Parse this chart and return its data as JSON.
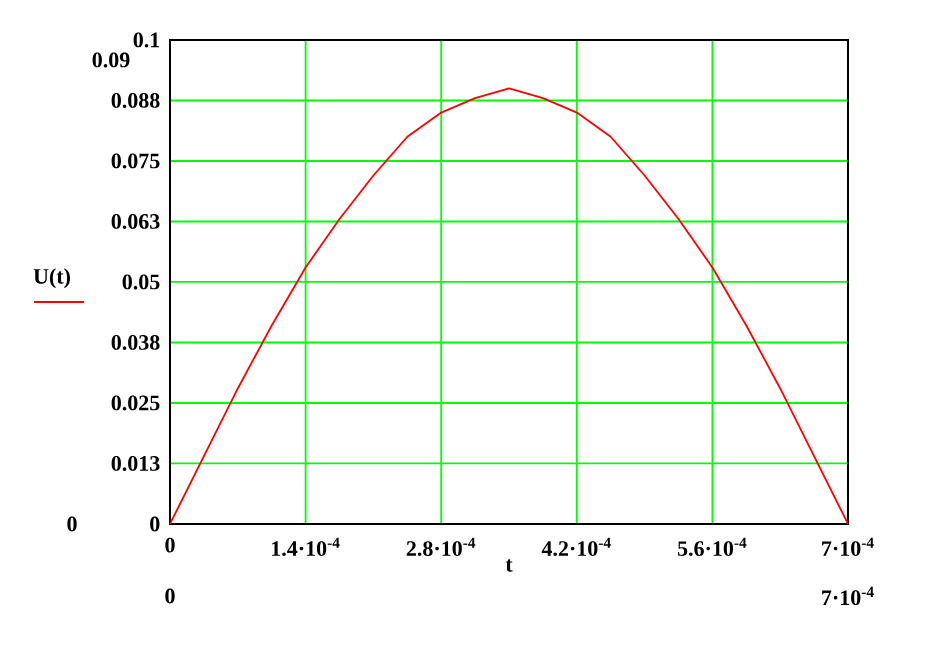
{
  "chart_data": {
    "type": "line",
    "xlabel": "t",
    "legend": "left",
    "grid": true,
    "x": [
      0,
      3.5e-05,
      7e-05,
      0.000105,
      0.00014,
      0.000175,
      0.00021,
      0.000245,
      0.00028,
      0.000315,
      0.00035,
      0.000385,
      0.00042,
      0.000455,
      0.00049,
      0.000525,
      0.00056,
      0.000595,
      0.00063,
      0.000665,
      0.0007
    ],
    "series": [
      {
        "name": "U(t)",
        "color": "#ff0000",
        "values": [
          0,
          0.014,
          0.028,
          0.041,
          0.053,
          0.063,
          0.072,
          0.08,
          0.085,
          0.088,
          0.09,
          0.088,
          0.085,
          0.08,
          0.072,
          0.063,
          0.053,
          0.041,
          0.028,
          0.014,
          0
        ]
      }
    ],
    "xlim": [
      0,
      0.0007
    ],
    "ylim": [
      0,
      0.1
    ],
    "xticks": [
      0,
      {
        "value": 0.00014,
        "label": "1.4·10$^{-4}$"
      },
      {
        "value": 0.00028,
        "label": "2.8·10$^{-4}$"
      },
      {
        "value": 0.00042,
        "label": "4.2·10$^{-4}$"
      },
      {
        "value": 0.00056,
        "label": "5.6·10$^{-4}$"
      },
      {
        "value": 0.0007,
        "label": "7·10$^{-4}$"
      }
    ],
    "yticks": [
      0,
      {
        "value": 0.0125,
        "label": "0.013"
      },
      0.025,
      {
        "value": 0.0375,
        "label": "0.038"
      },
      0.05,
      {
        "value": 0.0625,
        "label": "0.063"
      },
      0.075,
      {
        "value": 0.0875,
        "label": "0.088"
      },
      0.1
    ],
    "annotations": [
      "0.09",
      "0",
      "0",
      "7·10$^{-4}$"
    ]
  }
}
